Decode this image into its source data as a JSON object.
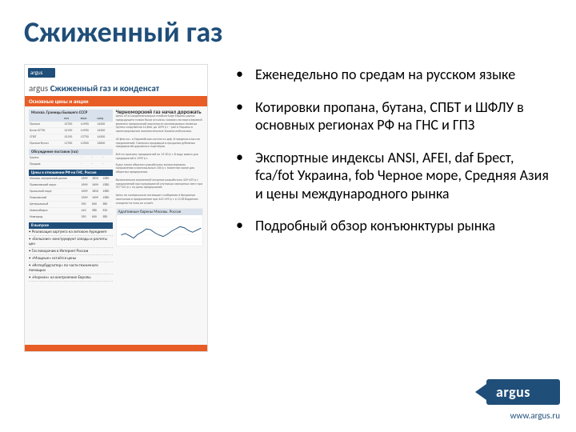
{
  "title": "Сжиженный газ",
  "bullets": [
    "Еженедельно по средам на русском языке",
    "Котировки пропана, бутана, СПБТ и ШФЛУ в основных регионах РФ на ГНС и ГПЗ",
    "Экспортные индексы ANSI, AFEI, daf Брест, fca/fot Украина, fob Черное море, Средняя Азия и цены международного рынка",
    "Подробный обзор конъюнктуры рынка"
  ],
  "thumb": {
    "doc_title": "Сжиженный газ и конденсат",
    "orange_bar": "Основные цены и акции",
    "article_title": "Черноморский газ начал дорожать",
    "table_header": "Москва. Границы Бывшего СССР",
    "table_cols": [
      "",
      "низ",
      "верх",
      "сред"
    ],
    "table_rows": [
      [
        "Пропан",
        "12700",
        "14950",
        "14200"
      ],
      [
        "Бутан БГТЖ",
        "12150",
        "14950",
        "14300"
      ],
      [
        "СПБТ",
        "12150",
        "15750",
        "14300"
      ],
      [
        "Пропан-бутан",
        "11700",
        "13500",
        "12600"
      ]
    ],
    "sub1": "Обсуждение поставок (газ)",
    "sub1_rows": [
      [
        "Группа",
        "-",
        "-",
        "-"
      ],
      [
        "Продаж",
        "-",
        "-",
        "-"
      ]
    ],
    "sub2": "Цены в отношении РФ на ГНС. Россия",
    "sub2_rows": [
      [
        "Москва, внутренний рынок",
        "1699",
        "1810",
        "1580"
      ],
      [
        "Приволжский округ",
        "1699",
        "1699",
        "1580"
      ],
      [
        "Уральский округ",
        "1699",
        "1810",
        "1580"
      ],
      [
        "Поволжский",
        "1699",
        "1699",
        "1580"
      ],
      [
        "Центральный",
        "550",
        "600",
        "580"
      ],
      [
        "Новосибирск",
        "443",
        "580",
        "520"
      ],
      [
        "Новгород",
        "550",
        "600",
        "580"
      ]
    ],
    "sub3": "В выпуске",
    "list_items": [
      "Реализация хартумга на литовом Аурединге",
      "«Бельские» конструируют запады и расчеты цен",
      "Газ поворачив в Интернет России",
      "«Мощные» остаётся цены",
      "«Интербудгалтер» по части техничного помощью",
      "«Норман» на контроление Европы"
    ],
    "chart": {
      "title": "Адаптивные барены Москвы. Россия",
      "x": [
        0,
        1,
        2,
        3,
        4,
        5,
        6,
        7,
        8,
        9,
        10,
        11,
        12,
        13,
        14,
        15,
        16,
        17,
        18,
        19
      ],
      "y": [
        1200,
        1210,
        1195,
        1180,
        1205,
        1220,
        1240,
        1235,
        1215,
        1200,
        1190,
        1205,
        1225,
        1240,
        1255,
        1248,
        1230,
        1218,
        1232,
        1245
      ],
      "ylim": [
        1100,
        1300
      ],
      "line_color": "#1f4e79",
      "grid_color": "#e8e8e8",
      "bg": "#ffffff"
    }
  },
  "logo": {
    "text": "argus",
    "url": "www.argus.ru",
    "bg": "#1f4e79"
  },
  "colors": {
    "accent": "#1f4e79",
    "orange": "#e85c25"
  }
}
